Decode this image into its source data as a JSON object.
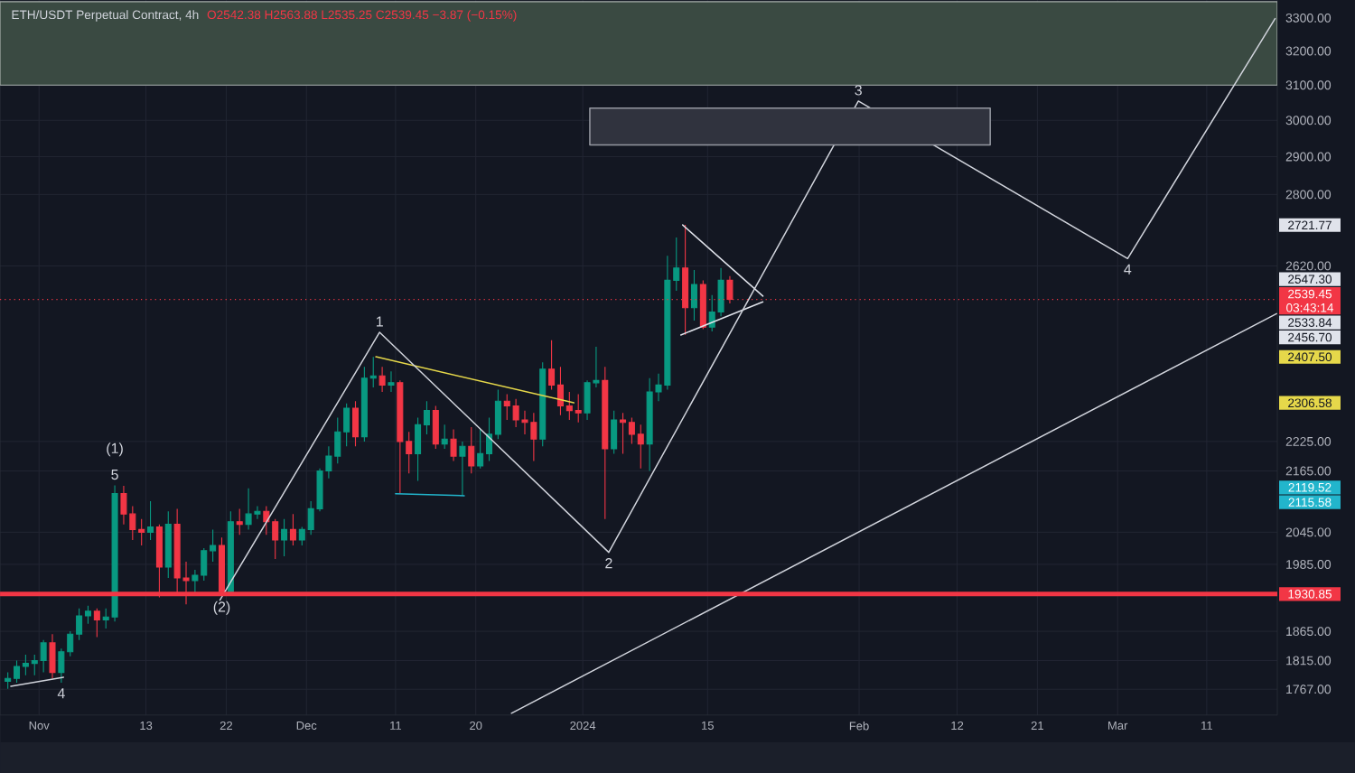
{
  "chart_data": {
    "type": "candlestick",
    "title": "ETH/USDT Perpetual Contract, 4h",
    "subtitle": "O2542.38 H2563.88 L2535.25 C2539.45 −3.87 (−0.15%)",
    "xlim": [
      "2023-10-27T15:00",
      "2024-03-18T22:00"
    ],
    "ylim": [
      1725,
      3356
    ],
    "log": "y",
    "grid": true,
    "xticks": [
      {
        "value": "2023-11-01",
        "label": "Nov"
      },
      {
        "value": "2023-11-13",
        "label": "13"
      },
      {
        "value": "2023-11-22",
        "label": "22"
      },
      {
        "value": "2023-12-01",
        "label": "Dec"
      },
      {
        "value": "2023-12-11",
        "label": "11"
      },
      {
        "value": "2023-12-20",
        "label": "20"
      },
      {
        "value": "2024-01-01",
        "label": "2024"
      },
      {
        "value": "2024-01-15",
        "label": "15"
      },
      {
        "value": "2024-02-01",
        "label": "Feb"
      },
      {
        "value": "2024-02-12",
        "label": "12"
      },
      {
        "value": "2024-02-21",
        "label": "21"
      },
      {
        "value": "2024-03-01",
        "label": "Mar"
      },
      {
        "value": "2024-03-11",
        "label": "11"
      }
    ],
    "yticks": [
      {
        "value": 3300,
        "label": "3300.00"
      },
      {
        "value": 3200,
        "label": "3200.00"
      },
      {
        "value": 3100,
        "label": "3100.00"
      },
      {
        "value": 3000,
        "label": "3000.00"
      },
      {
        "value": 2900,
        "label": "2900.00"
      },
      {
        "value": 2800,
        "label": "2800.00"
      },
      {
        "value": 2620,
        "label": "2620.00"
      },
      {
        "value": 2225,
        "label": "2225.00"
      },
      {
        "value": 2165,
        "label": "2165.00"
      },
      {
        "value": 2045,
        "label": "2045.00"
      },
      {
        "value": 1985,
        "label": "1985.00"
      },
      {
        "value": 1865,
        "label": "1865.00"
      },
      {
        "value": 1815,
        "label": "1815.00"
      },
      {
        "value": 1767,
        "label": "1767.00"
      }
    ],
    "bands": [
      {
        "axis": "y",
        "from": 3100,
        "to": 3350,
        "color": "#3a4a42"
      }
    ],
    "ref_lines": [
      {
        "axis": "y",
        "value": 1930.85,
        "label": "1930.85",
        "color": "#f23645",
        "line_style": "solid"
      },
      {
        "axis": "y",
        "value": 2539.45,
        "label": "2539.45",
        "color": "#f23645",
        "line_style": "dotted"
      }
    ],
    "annotations": [
      {
        "text": "5",
        "x": "2023-11-09T12:00",
        "y": 2136
      },
      {
        "text": "(1)",
        "x": "2023-11-09T12:00",
        "y": 2136
      },
      {
        "text": "4",
        "x": "2023-11-03T12:00",
        "y": 1778
      },
      {
        "text": "(2)",
        "x": "2023-11-21T12:00",
        "y": 1928
      },
      {
        "text": "1",
        "x": "2023-12-09T05:00",
        "y": 2463
      },
      {
        "text": "2",
        "x": "2024-01-03T22:00",
        "y": 2007
      },
      {
        "text": "3",
        "x": "2024-01-31T22:00",
        "y": 3054
      },
      {
        "text": "4",
        "x": "2024-03-02T03:00",
        "y": 2638
      },
      {
        "text": "03:43:14",
        "y": 2539.45
      },
      "2407.50",
      "2306.58",
      "2119.52",
      "2115.58",
      "2721.77",
      "2547.30",
      "2456.70",
      "2533.84"
    ],
    "series": [
      {
        "x": [
          "2023-10-28T12:00",
          "2023-10-29T12:00",
          "2023-10-30T12:00",
          "2023-10-31T12:00",
          "2023-11-01T12:00",
          "2023-11-02T12:00",
          "2023-11-03T12:00",
          "2023-11-04T12:00",
          "2023-11-05T12:00",
          "2023-11-06T12:00",
          "2023-11-07T12:00",
          "2023-11-08T12:00",
          "2023-11-09T12:00",
          "2023-11-10T12:00",
          "2023-11-11T12:00",
          "2023-11-12T12:00",
          "2023-11-13T12:00",
          "2023-11-14T12:00",
          "2023-11-15T12:00",
          "2023-11-16T12:00",
          "2023-11-17T12:00",
          "2023-11-18T12:00",
          "2023-11-19T12:00",
          "2023-11-20T12:00",
          "2023-11-21T12:00",
          "2023-11-22T12:00",
          "2023-11-23T12:00",
          "2023-11-24T12:00",
          "2023-11-25T12:00",
          "2023-11-26T12:00",
          "2023-11-27T12:00",
          "2023-11-28T12:00",
          "2023-11-29T12:00",
          "2023-11-30T12:00",
          "2023-12-01T12:00",
          "2023-12-02T12:00",
          "2023-12-03T12:00",
          "2023-12-04T12:00",
          "2023-12-05T12:00",
          "2023-12-06T12:00",
          "2023-12-07T12:00",
          "2023-12-08T12:00",
          "2023-12-09T12:00",
          "2023-12-10T12:00",
          "2023-12-11T12:00",
          "2023-12-12T12:00",
          "2023-12-13T12:00",
          "2023-12-14T12:00",
          "2023-12-15T12:00",
          "2023-12-16T12:00",
          "2023-12-17T12:00",
          "2023-12-18T12:00",
          "2023-12-19T12:00",
          "2023-12-20T12:00",
          "2023-12-21T12:00",
          "2023-12-22T12:00",
          "2023-12-23T12:00",
          "2023-12-24T12:00",
          "2023-12-25T12:00",
          "2023-12-26T12:00",
          "2023-12-27T12:00",
          "2023-12-28T12:00",
          "2023-12-29T12:00",
          "2023-12-30T12:00",
          "2023-12-31T12:00",
          "2024-01-01T12:00",
          "2024-01-02T12:00",
          "2024-01-03T12:00",
          "2024-01-04T12:00",
          "2024-01-05T12:00",
          "2024-01-06T12:00",
          "2024-01-07T12:00",
          "2024-01-08T12:00",
          "2024-01-09T12:00",
          "2024-01-10T12:00",
          "2024-01-11T12:00",
          "2024-01-12T12:00",
          "2024-01-13T12:00",
          "2024-01-14T12:00",
          "2024-01-15T12:00",
          "2024-01-16T12:00",
          "2024-01-17T12:00"
        ],
        "ohlc": [
          [
            1780,
            1795,
            1768,
            1785
          ],
          [
            1785,
            1815,
            1778,
            1805
          ],
          [
            1805,
            1825,
            1790,
            1810
          ],
          [
            1810,
            1825,
            1790,
            1815
          ],
          [
            1815,
            1850,
            1795,
            1845
          ],
          [
            1845,
            1860,
            1785,
            1795
          ],
          [
            1795,
            1835,
            1778,
            1830
          ],
          [
            1830,
            1865,
            1822,
            1860
          ],
          [
            1860,
            1905,
            1850,
            1892
          ],
          [
            1892,
            1910,
            1878,
            1900
          ],
          [
            1900,
            1905,
            1855,
            1885
          ],
          [
            1885,
            1905,
            1870,
            1890
          ],
          [
            1890,
            2136,
            1882,
            2120
          ],
          [
            2120,
            2135,
            2060,
            2080
          ],
          [
            2080,
            2095,
            2030,
            2050
          ],
          [
            2050,
            2070,
            2020,
            2045
          ],
          [
            2045,
            2105,
            2030,
            2055
          ],
          [
            2055,
            2060,
            1925,
            1980
          ],
          [
            1980,
            2085,
            1960,
            2060
          ],
          [
            2060,
            2090,
            1930,
            1960
          ],
          [
            1960,
            1990,
            1912,
            1955
          ],
          [
            1955,
            1975,
            1930,
            1965
          ],
          [
            1965,
            2015,
            1955,
            2010
          ],
          [
            2010,
            2050,
            1990,
            2020
          ],
          [
            2020,
            2035,
            1928,
            1935
          ],
          [
            1935,
            2085,
            1930,
            2065
          ],
          [
            2065,
            2090,
            2040,
            2060
          ],
          [
            2060,
            2130,
            2050,
            2080
          ],
          [
            2080,
            2095,
            2070,
            2085
          ],
          [
            2085,
            2095,
            2040,
            2065
          ],
          [
            2065,
            2070,
            1995,
            2030
          ],
          [
            2030,
            2070,
            2000,
            2050
          ],
          [
            2050,
            2080,
            2020,
            2030
          ],
          [
            2030,
            2055,
            2020,
            2050
          ],
          [
            2050,
            2105,
            2040,
            2090
          ],
          [
            2090,
            2170,
            2085,
            2165
          ],
          [
            2165,
            2215,
            2150,
            2195
          ],
          [
            2195,
            2275,
            2180,
            2245
          ],
          [
            2245,
            2305,
            2215,
            2295
          ],
          [
            2295,
            2310,
            2215,
            2235
          ],
          [
            2235,
            2385,
            2225,
            2360
          ],
          [
            2360,
            2407,
            2340,
            2365
          ],
          [
            2365,
            2385,
            2330,
            2345
          ],
          [
            2345,
            2375,
            2330,
            2350
          ],
          [
            2350,
            2355,
            2120,
            2225
          ],
          [
            2225,
            2245,
            2160,
            2200
          ],
          [
            2200,
            2275,
            2145,
            2260
          ],
          [
            2260,
            2310,
            2240,
            2290
          ],
          [
            2290,
            2300,
            2210,
            2220
          ],
          [
            2220,
            2260,
            2210,
            2230
          ],
          [
            2230,
            2250,
            2185,
            2195
          ],
          [
            2195,
            2225,
            2116,
            2215
          ],
          [
            2215,
            2255,
            2160,
            2175
          ],
          [
            2175,
            2250,
            2170,
            2200
          ],
          [
            2200,
            2275,
            2185,
            2240
          ],
          [
            2240,
            2335,
            2230,
            2310
          ],
          [
            2310,
            2325,
            2270,
            2300
          ],
          [
            2300,
            2315,
            2255,
            2270
          ],
          [
            2270,
            2290,
            2240,
            2265
          ],
          [
            2265,
            2285,
            2185,
            2230
          ],
          [
            2230,
            2395,
            2215,
            2380
          ],
          [
            2380,
            2445,
            2335,
            2345
          ],
          [
            2345,
            2385,
            2280,
            2300
          ],
          [
            2300,
            2330,
            2270,
            2290
          ],
          [
            2290,
            2325,
            2265,
            2285
          ],
          [
            2285,
            2355,
            2270,
            2350
          ],
          [
            2350,
            2430,
            2340,
            2355
          ],
          [
            2355,
            2385,
            2070,
            2210
          ],
          [
            2210,
            2290,
            2200,
            2270
          ],
          [
            2270,
            2285,
            2200,
            2265
          ],
          [
            2265,
            2275,
            2220,
            2240
          ],
          [
            2240,
            2260,
            2170,
            2220
          ],
          [
            2220,
            2360,
            2165,
            2330
          ],
          [
            2330,
            2370,
            2310,
            2345
          ],
          [
            2345,
            2645,
            2335,
            2585
          ],
          [
            2585,
            2690,
            2560,
            2615
          ],
          [
            2615,
            2721.77,
            2457,
            2520
          ],
          [
            2520,
            2610,
            2490,
            2575
          ],
          [
            2575,
            2585,
            2470,
            2475
          ],
          [
            2475,
            2550,
            2465,
            2510
          ],
          [
            2510,
            2615,
            2500,
            2585
          ],
          [
            2585,
            2595,
            2530,
            2539.45
          ]
        ],
        "colors": [
          "#089981",
          "#089981",
          "#089981",
          "#089981",
          "#089981",
          "#f23645",
          "#089981",
          "#089981",
          "#089981",
          "#089981",
          "#f23645",
          "#089981",
          "#089981",
          "#f23645",
          "#f23645",
          "#f23645",
          "#089981",
          "#f23645",
          "#089981",
          "#f23645",
          "#f23645",
          "#089981",
          "#089981",
          "#089981",
          "#f23645",
          "#089981",
          "#f23645",
          "#089981",
          "#089981",
          "#f23645",
          "#f23645",
          "#089981",
          "#f23645",
          "#089981",
          "#089981",
          "#089981",
          "#089981",
          "#089981",
          "#089981",
          "#f23645",
          "#089981",
          "#089981",
          "#f23645",
          "#089981",
          "#f23645",
          "#f23645",
          "#089981",
          "#089981",
          "#f23645",
          "#089981",
          "#f23645",
          "#089981",
          "#f23645",
          "#089981",
          "#089981",
          "#089981",
          "#f23645",
          "#f23645",
          "#f23645",
          "#f23645",
          "#089981",
          "#f23645",
          "#f23645",
          "#f23645",
          "#f23645",
          "#089981",
          "#089981",
          "#f23645",
          "#089981",
          "#f23645",
          "#f23645",
          "#f23645",
          "#089981",
          "#089981",
          "#089981",
          "#089981",
          "#f23645",
          "#089981",
          "#f23645",
          "#089981",
          "#089981",
          "#f23645"
        ]
      },
      {
        "type": "line",
        "x": [
          "2023-12-08T19:00",
          "2023-12-31T00:00"
        ],
        "values": [
          2407.5,
          2306.58
        ],
        "color": "#e6d84a"
      },
      {
        "type": "line",
        "x": [
          "2023-12-11T00:00",
          "2023-12-18T17:00"
        ],
        "values": [
          2119.52,
          2115.58
        ],
        "color": "#22b5cc"
      },
      {
        "type": "line",
        "x": [
          "2024-01-12T05:00",
          "2024-01-21T05:00"
        ],
        "values": [
          2721.77,
          2547.3
        ],
        "color": "#e0e3eb"
      },
      {
        "type": "line",
        "x": [
          "2024-01-12T00:00",
          "2024-01-21T05:00"
        ],
        "values": [
          2456.7,
          2533.84
        ],
        "color": "#e0e3eb"
      },
      {
        "type": "line",
        "x": [
          "2023-11-21T07:00",
          "2023-12-09T05:00",
          "2024-01-03T22:00",
          "2024-01-31T22:00",
          "2024-03-02T03:00",
          "2024-03-18T16:00"
        ],
        "values": [
          1920,
          2463,
          2007,
          3054,
          2638,
          3298
        ],
        "color": "#d1d4dc"
      },
      {
        "type": "line",
        "x": [
          "2023-12-24T00:00",
          "2024-03-18T20:00"
        ],
        "values": [
          1728,
          2506
        ],
        "color": "#d1d4dc"
      },
      {
        "type": "line",
        "x": [
          "2023-10-28T20:00",
          "2023-11-03T18:00"
        ],
        "values": [
          1772,
          1787
        ],
        "color": "#d1d4dc"
      },
      {
        "type": "area",
        "x": [
          "2024-01-01T19:00",
          "2024-02-15T17:00",
          "2024-02-15T17:00",
          "2024-01-01T19:00",
          "2024-01-01T19:00"
        ],
        "values": [
          2932,
          2932,
          3034,
          3034,
          2932
        ],
        "color": "#9598a1"
      }
    ]
  }
}
